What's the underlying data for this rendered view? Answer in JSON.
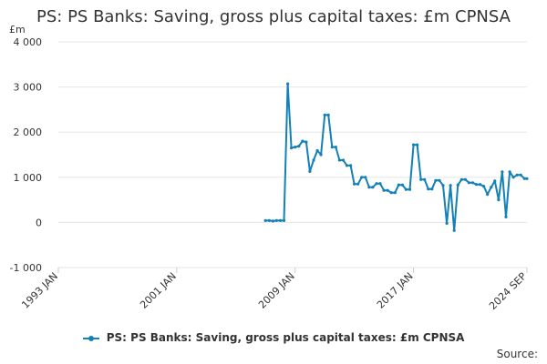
{
  "chart_data": {
    "type": "line",
    "title": "PS: PS Banks: Saving, gross plus capital taxes: £m CPNSA",
    "unit_label": "£m",
    "xlabel": "",
    "ylabel": "",
    "xlim": [
      "1993 JAN",
      "2024 SEP"
    ],
    "ylim": [
      -1000,
      4000
    ],
    "y_ticks": [
      -1000,
      0,
      1000,
      2000,
      3000,
      4000
    ],
    "y_tick_labels": [
      "-1 000",
      "0",
      "1 000",
      "2 000",
      "3 000",
      "4 000"
    ],
    "x_ticks": [
      "1993 JAN",
      "2001 JAN",
      "2009 JAN",
      "2017 JAN",
      "2024 SEP"
    ],
    "grid": "horizontal",
    "legend_placement": "bottom",
    "color": "#1380b7",
    "series": [
      {
        "name": "PS: PS Banks: Saving, gross plus capital taxes: £m CPNSA",
        "points": [
          [
            "2007 JAN",
            40
          ],
          [
            "2007 APR",
            40
          ],
          [
            "2007 JUL",
            30
          ],
          [
            "2007 OCT",
            40
          ],
          [
            "2008 JAN",
            40
          ],
          [
            "2008 APR",
            40
          ],
          [
            "2008 JUL",
            3070
          ],
          [
            "2008 OCT",
            1650
          ],
          [
            "2009 JAN",
            1670
          ],
          [
            "2009 APR",
            1690
          ],
          [
            "2009 JUL",
            1800
          ],
          [
            "2009 OCT",
            1780
          ],
          [
            "2010 JAN",
            1130
          ],
          [
            "2010 APR",
            1380
          ],
          [
            "2010 JUL",
            1590
          ],
          [
            "2010 OCT",
            1500
          ],
          [
            "2011 JAN",
            2380
          ],
          [
            "2011 APR",
            2380
          ],
          [
            "2011 JUL",
            1670
          ],
          [
            "2011 OCT",
            1670
          ],
          [
            "2012 JAN",
            1380
          ],
          [
            "2012 APR",
            1380
          ],
          [
            "2012 JUL",
            1260
          ],
          [
            "2012 OCT",
            1260
          ],
          [
            "2013 JAN",
            850
          ],
          [
            "2013 APR",
            850
          ],
          [
            "2013 JUL",
            1000
          ],
          [
            "2013 OCT",
            1000
          ],
          [
            "2014 JAN",
            780
          ],
          [
            "2014 APR",
            780
          ],
          [
            "2014 JUL",
            860
          ],
          [
            "2014 OCT",
            860
          ],
          [
            "2015 JAN",
            710
          ],
          [
            "2015 APR",
            710
          ],
          [
            "2015 JUL",
            660
          ],
          [
            "2015 OCT",
            660
          ],
          [
            "2016 JAN",
            830
          ],
          [
            "2016 APR",
            830
          ],
          [
            "2016 JUL",
            730
          ],
          [
            "2016 OCT",
            730
          ],
          [
            "2017 JAN",
            1720
          ],
          [
            "2017 APR",
            1720
          ],
          [
            "2017 JUL",
            950
          ],
          [
            "2017 OCT",
            950
          ],
          [
            "2018 JAN",
            740
          ],
          [
            "2018 APR",
            740
          ],
          [
            "2018 JUL",
            930
          ],
          [
            "2018 OCT",
            930
          ],
          [
            "2019 JAN",
            820
          ],
          [
            "2019 APR",
            -20
          ],
          [
            "2019 JUL",
            820
          ],
          [
            "2019 OCT",
            -180
          ],
          [
            "2020 JAN",
            830
          ],
          [
            "2020 APR",
            950
          ],
          [
            "2020 JUL",
            950
          ],
          [
            "2020 OCT",
            880
          ],
          [
            "2021 JAN",
            880
          ],
          [
            "2021 APR",
            840
          ],
          [
            "2021 JUL",
            840
          ],
          [
            "2021 OCT",
            800
          ],
          [
            "2022 JAN",
            620
          ],
          [
            "2022 APR",
            780
          ],
          [
            "2022 JUL",
            920
          ],
          [
            "2022 OCT",
            500
          ],
          [
            "2023 JAN",
            1120
          ],
          [
            "2023 APR",
            120
          ],
          [
            "2023 JUL",
            1120
          ],
          [
            "2023 OCT",
            1000
          ],
          [
            "2024 JAN",
            1050
          ],
          [
            "2024 APR",
            1050
          ],
          [
            "2024 JUL",
            970
          ],
          [
            "2024 SEP",
            970
          ]
        ]
      }
    ]
  },
  "legend": {
    "label": "PS: PS Banks: Saving, gross plus capital taxes: £m CPNSA"
  },
  "source": {
    "label": "Source:"
  }
}
